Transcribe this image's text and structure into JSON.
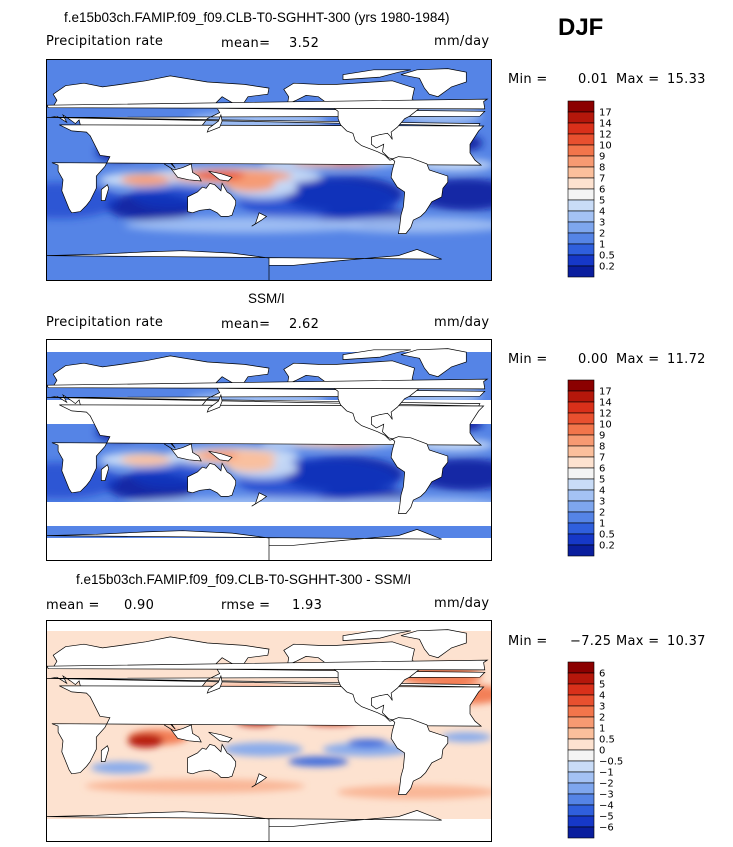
{
  "season": "DJF",
  "panels": [
    {
      "title": "f.e15b03ch.FAMIP.f09_f09.CLB-T0-SGHHT-300 (yrs 1980-1984)",
      "left_label": "Precipitation rate",
      "stat1_label": "mean=",
      "stat1_value": "3.52",
      "stat2_label": "",
      "stat2_value": "",
      "units": "mm/day",
      "minmax": {
        "min_label": "Min =",
        "min": "0.01",
        "max_label": "Max =",
        "max": "15.33"
      },
      "colorbar": {
        "levels": [
          "17",
          "14",
          "12",
          "10",
          "9",
          "8",
          "7",
          "6",
          "5",
          "4",
          "3",
          "2",
          "1",
          "0.5",
          "0.2"
        ],
        "colors": [
          "#8b0000",
          "#b5170b",
          "#d9301a",
          "#e8502f",
          "#f2754b",
          "#f79a72",
          "#fbbf9c",
          "#fde2d0",
          "#f4f4f4",
          "#c9dcf7",
          "#a4c2f4",
          "#7ea6ee",
          "#5584e6",
          "#2f5fdd",
          "#1638c8",
          "#0a1e9e"
        ]
      }
    },
    {
      "title": "SSM/I",
      "left_label": "Precipitation rate",
      "stat1_label": "mean=",
      "stat1_value": "2.62",
      "stat2_label": "",
      "stat2_value": "",
      "units": "mm/day",
      "minmax": {
        "min_label": "Min =",
        "min": "0.00",
        "max_label": "Max =",
        "max": "11.72"
      },
      "colorbar": {
        "levels": [
          "17",
          "14",
          "12",
          "10",
          "9",
          "8",
          "7",
          "6",
          "5",
          "4",
          "3",
          "2",
          "1",
          "0.5",
          "0.2"
        ],
        "colors": [
          "#8b0000",
          "#b5170b",
          "#d9301a",
          "#e8502f",
          "#f2754b",
          "#f79a72",
          "#fbbf9c",
          "#fde2d0",
          "#f4f4f4",
          "#c9dcf7",
          "#a4c2f4",
          "#7ea6ee",
          "#5584e6",
          "#2f5fdd",
          "#1638c8",
          "#0a1e9e"
        ]
      }
    },
    {
      "title": "f.e15b03ch.FAMIP.f09_f09.CLB-T0-SGHHT-300 - SSM/I",
      "left_label": "",
      "stat1_label": "mean =",
      "stat1_value": "0.90",
      "stat2_label": "rmse =",
      "stat2_value": "1.93",
      "units": "mm/day",
      "minmax": {
        "min_label": "Min =",
        "min": "−7.25",
        "max_label": "Max =",
        "max": "10.37"
      },
      "colorbar": {
        "levels": [
          "6",
          "5",
          "4",
          "3",
          "2",
          "1",
          "0.5",
          "0",
          "−0.5",
          "−1",
          "−2",
          "−3",
          "−4",
          "−5",
          "−6"
        ],
        "colors": [
          "#8b0000",
          "#b5170b",
          "#d9301a",
          "#e8502f",
          "#f2754b",
          "#f79a72",
          "#fbbf9c",
          "#fde2d0",
          "#f4f4f4",
          "#c9dcf7",
          "#a4c2f4",
          "#7ea6ee",
          "#5584e6",
          "#2f5fdd",
          "#1638c8",
          "#0a1e9e"
        ]
      }
    }
  ],
  "chart_data": [
    {
      "type": "heatmap",
      "title": "f.e15b03ch.FAMIP.f09_f09.CLB-T0-SGHHT-300 (yrs 1980-1984)",
      "variable": "Precipitation rate",
      "units": "mm/day",
      "mean": 3.52,
      "min": 0.01,
      "max": 15.33,
      "season": "DJF",
      "contour_levels": [
        0.2,
        0.5,
        1,
        2,
        3,
        4,
        5,
        6,
        7,
        8,
        9,
        10,
        12,
        14,
        17
      ]
    },
    {
      "type": "heatmap",
      "title": "SSM/I",
      "variable": "Precipitation rate",
      "units": "mm/day",
      "mean": 2.62,
      "min": 0.0,
      "max": 11.72,
      "season": "DJF",
      "contour_levels": [
        0.2,
        0.5,
        1,
        2,
        3,
        4,
        5,
        6,
        7,
        8,
        9,
        10,
        12,
        14,
        17
      ]
    },
    {
      "type": "heatmap",
      "title": "f.e15b03ch.FAMIP.f09_f09.CLB-T0-SGHHT-300 - SSM/I",
      "units": "mm/day",
      "mean": 0.9,
      "rmse": 1.93,
      "min": -7.25,
      "max": 10.37,
      "season": "DJF",
      "contour_levels": [
        -6,
        -5,
        -4,
        -3,
        -2,
        -1,
        -0.5,
        0,
        0.5,
        1,
        2,
        3,
        4,
        5,
        6
      ]
    }
  ]
}
